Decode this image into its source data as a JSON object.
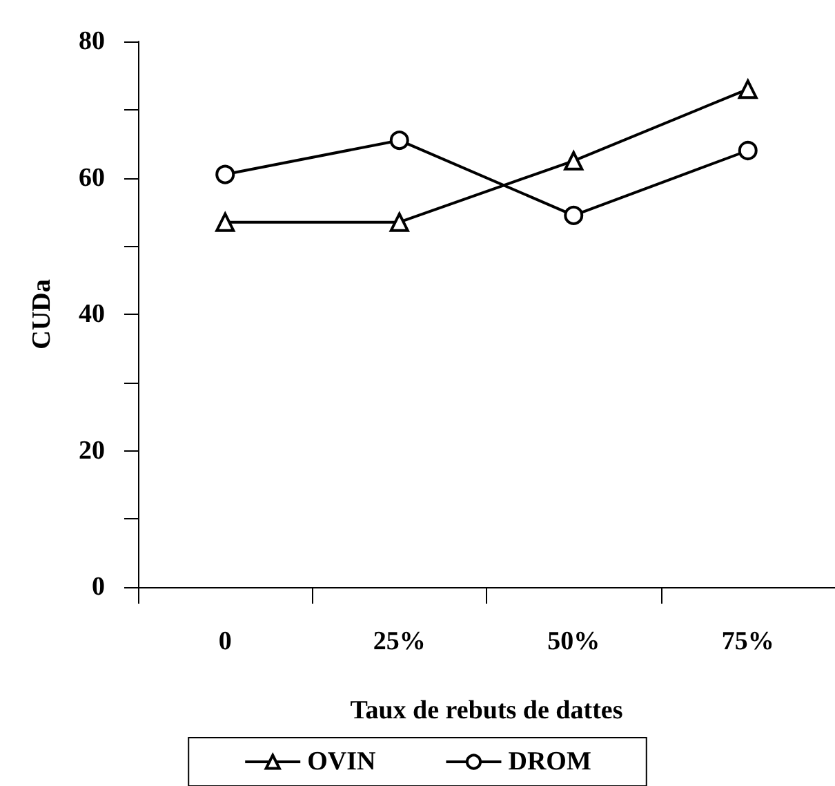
{
  "chart_data": {
    "type": "line",
    "xlabel": "Taux de rebuts de dattes",
    "ylabel": "CUDa",
    "categories": [
      "0",
      "25%",
      "50%",
      "75%"
    ],
    "series": [
      {
        "name": "OVIN",
        "color": "#000000",
        "marker": "triangle",
        "values": [
          53.5,
          53.5,
          62.5,
          73
        ]
      },
      {
        "name": "DROM",
        "color": "#000000",
        "marker": "circle",
        "values": [
          60.5,
          65.5,
          54.5,
          64
        ]
      }
    ],
    "ylim": [
      0,
      80
    ],
    "yticks": [
      0,
      {
        "value": 10,
        "label": null
      },
      20,
      {
        "value": 30,
        "label": null
      },
      40,
      {
        "value": 50,
        "label": null
      },
      60,
      {
        "value": 70,
        "label": null
      },
      80
    ],
    "grid": false,
    "legend": "bottom",
    "line_style": "solid"
  }
}
